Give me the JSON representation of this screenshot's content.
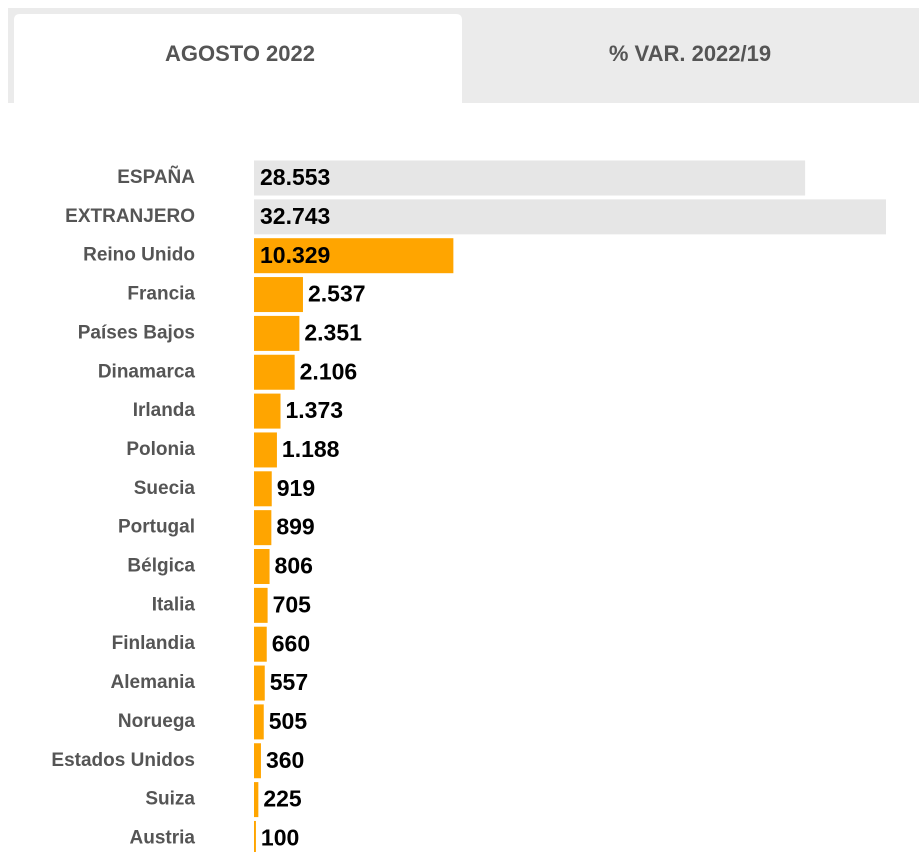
{
  "tabs": [
    "AGOSTO 2022",
    "% VAR. 2022/19"
  ],
  "chart_data": {
    "type": "bar",
    "orientation": "horizontal",
    "categories": [
      "ESPAÑA",
      "EXTRANJERO",
      "Reino Unido",
      "Francia",
      "Países Bajos",
      "Dinamarca",
      "Irlanda",
      "Polonia",
      "Suecia",
      "Portugal",
      "Bélgica",
      "Italia",
      "Finlandia",
      "Alemania",
      "Noruega",
      "Estados Unidos",
      "Suiza",
      "Austria"
    ],
    "values": [
      28553,
      32743,
      10329,
      2537,
      2351,
      2106,
      1373,
      1188,
      919,
      899,
      806,
      705,
      660,
      557,
      505,
      360,
      225,
      100
    ],
    "value_labels": [
      "28.553",
      "32.743",
      "10.329",
      "2.537",
      "2.351",
      "2.106",
      "1.373",
      "1.188",
      "919",
      "899",
      "806",
      "705",
      "660",
      "557",
      "505",
      "360",
      "225",
      "100"
    ],
    "colors": [
      "#e6e6e6",
      "#e6e6e6",
      "#ffa500",
      "#ffa500",
      "#ffa500",
      "#ffa500",
      "#ffa500",
      "#ffa500",
      "#ffa500",
      "#ffa500",
      "#ffa500",
      "#ffa500",
      "#ffa500",
      "#ffa500",
      "#ffa500",
      "#ffa500",
      "#ffa500",
      "#ffa500"
    ]
  }
}
